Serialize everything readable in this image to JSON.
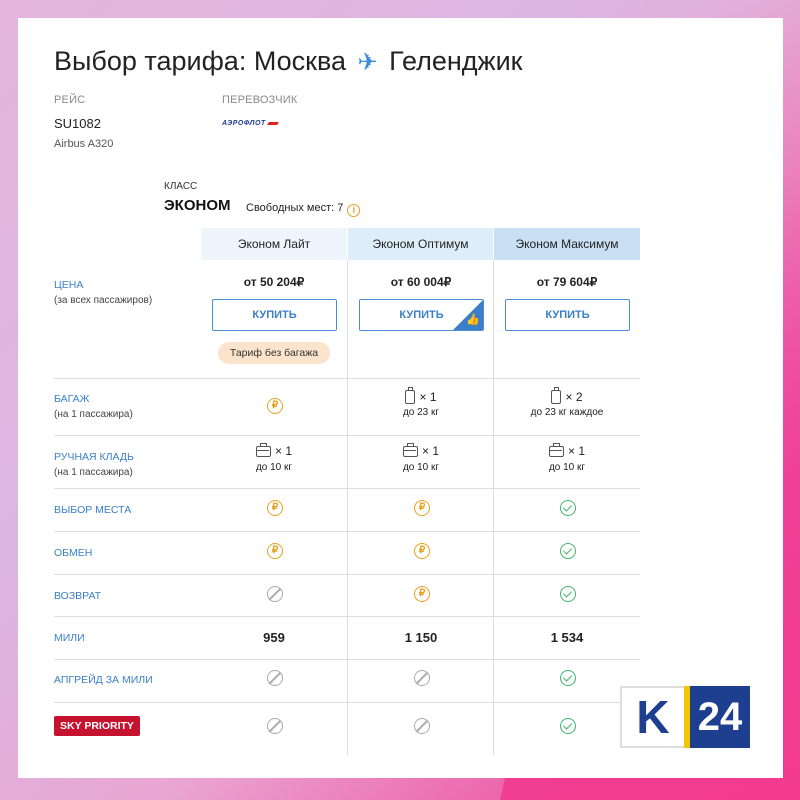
{
  "header": {
    "title_prefix": "Выбор тарифа: Москва",
    "title_suffix": "Геленджик",
    "plane_glyph": "✈"
  },
  "flight": {
    "label": "РЕЙС",
    "code": "SU1082",
    "aircraft": "Airbus A320",
    "carrier_label": "ПЕРЕВОЗЧИК",
    "carrier_logo_text": "АЭРОФЛОТ"
  },
  "cabin": {
    "label": "КЛАСС",
    "name": "ЭКОНОМ",
    "free_seats": "Свободных мест: 7",
    "info_glyph": "i"
  },
  "tariffs": [
    {
      "name": "Эконом Лайт",
      "price": "от 50 204₽",
      "buy_label": "КУПИТЬ"
    },
    {
      "name": "Эконом Оптимум",
      "price": "от 60 004₽",
      "buy_label": "КУПИТЬ",
      "recommended_icon": "thumbs-up-icon"
    },
    {
      "name": "Эконом Максимум",
      "price": "от 79 604₽",
      "buy_label": "КУПИТЬ"
    }
  ],
  "rows": {
    "price": {
      "label": "ЦЕНА",
      "sub": "(за всех пассажиров)"
    },
    "baggage": {
      "label": "БАГАЖ",
      "sub": "(на 1 пассажира)"
    },
    "carry_on": {
      "label": "РУЧНАЯ КЛАДЬ",
      "sub": "(на 1 пассажира)"
    },
    "seat": {
      "label": "ВЫБОР МЕСТА"
    },
    "exchange": {
      "label": "ОБМЕН"
    },
    "refund": {
      "label": "ВОЗВРАТ"
    },
    "miles": {
      "label": "МИЛИ"
    },
    "upgrade": {
      "label": "АПГРЕЙД ЗА МИЛИ"
    },
    "sky": {
      "label": "SKY PRIORITY"
    }
  },
  "no_baggage_badge": "Тариф без багажа",
  "rub_glyph": "₽",
  "baggage_values": [
    {
      "qty": "× 1",
      "note": "до 23 кг"
    },
    {
      "qty": "× 2",
      "note": "до 23 кг каждое"
    }
  ],
  "carry_values": {
    "qty": "× 1",
    "note": "до 10 кг"
  },
  "miles_values": [
    "959",
    "1 150",
    "1 534"
  ],
  "status_colors": {
    "paid": "#e8a020",
    "included": "#3fb56c",
    "unavailable": "#aaaaaa"
  },
  "brand": {
    "k": "K",
    "num": "24"
  }
}
